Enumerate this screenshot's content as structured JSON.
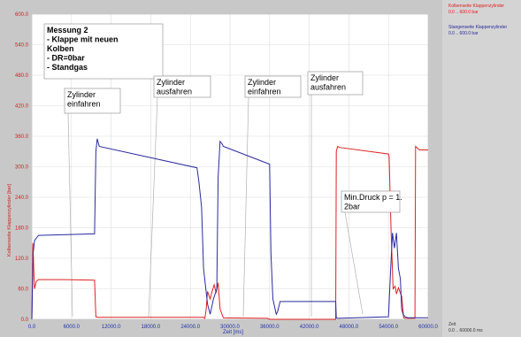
{
  "chart_data": {
    "type": "line",
    "xlabel": "Zeit [ms]",
    "ylabel": "Kolbenseite Klappenzylinder [bar]",
    "xlim": [
      0,
      60000
    ],
    "ylim": [
      0,
      600
    ],
    "xticks": [
      "0.0",
      "6000.0",
      "12000.0",
      "18000.0",
      "24000.0",
      "30000.0",
      "36000.0",
      "42000.0",
      "48000.0",
      "54000.0",
      "60000.0"
    ],
    "yticks": [
      "0.0",
      "60.0",
      "120.0",
      "180.0",
      "240.0",
      "300.0",
      "360.0",
      "420.0",
      "480.0",
      "540.0",
      "600.0"
    ],
    "grid": true,
    "series": [
      {
        "name": "Kolbenseite Klappenzylinder",
        "range": "0.0 .. 600.0 bar",
        "color": "#e02020",
        "x": [
          0,
          150,
          400,
          700,
          1000,
          5000,
          9500,
          9700,
          10000,
          26000,
          26200,
          26400,
          26600,
          27000,
          27300,
          27600,
          27900,
          28200,
          28500,
          29000,
          35500,
          35700,
          36000,
          46000,
          46100,
          46300,
          46600,
          54000,
          54100,
          54400,
          54700,
          55000,
          55200,
          55500,
          56000,
          56300,
          56600,
          58000,
          58100,
          58400,
          58700,
          60000
        ],
        "y": [
          0,
          150,
          60,
          75,
          78,
          78,
          77,
          5,
          4,
          4,
          2,
          20,
          55,
          40,
          55,
          68,
          52,
          72,
          20,
          3,
          2,
          2,
          0,
          0,
          330,
          340,
          338,
          325,
          320,
          170,
          60,
          65,
          50,
          62,
          45,
          3,
          2,
          2,
          340,
          336,
          333,
          333
        ]
      },
      {
        "name": "Stangenseite Klappenzylinder",
        "range": "0.0 .. 600.0 bar",
        "color": "#2a2aa0",
        "x": [
          0,
          200,
          400,
          700,
          1000,
          9500,
          9700,
          9900,
          10200,
          25000,
          25300,
          25700,
          26000,
          26600,
          27000,
          27500,
          28000,
          28200,
          28500,
          28800,
          29000,
          36000,
          36200,
          36500,
          37000,
          37200,
          37600,
          46000,
          46100,
          46300,
          54000,
          54300,
          54600,
          54900,
          55200,
          55500,
          55800,
          56000,
          56200,
          56500,
          57000,
          60000
        ],
        "y": [
          0,
          130,
          155,
          160,
          165,
          168,
          330,
          355,
          340,
          298,
          270,
          220,
          100,
          30,
          10,
          40,
          60,
          280,
          350,
          345,
          340,
          305,
          130,
          40,
          10,
          15,
          35,
          35,
          3,
          2,
          5,
          90,
          170,
          140,
          170,
          100,
          80,
          20,
          10,
          5,
          3,
          3
        ]
      }
    ],
    "annotations": [
      {
        "lines": [
          "Messung 2",
          "- Klappe mit neuen",
          "Kolben",
          "- DR=0bar",
          "- Standgas"
        ],
        "bold": true
      },
      {
        "lines": [
          "Zylinder",
          "einfahren"
        ],
        "bold": false
      },
      {
        "lines": [
          "Zylinder",
          "ausfahren"
        ],
        "bold": false
      },
      {
        "lines": [
          "Zylinder",
          "einfahren"
        ],
        "bold": false
      },
      {
        "lines": [
          "Zylinder",
          "ausfahren"
        ],
        "bold": false
      },
      {
        "lines": [
          "Min.Druck p = 1.",
          "2bar"
        ],
        "bold": false
      }
    ]
  },
  "legend": {
    "xaxis_name": "Zeit",
    "xaxis_range": "0.0 .. 60000.0 ms"
  }
}
